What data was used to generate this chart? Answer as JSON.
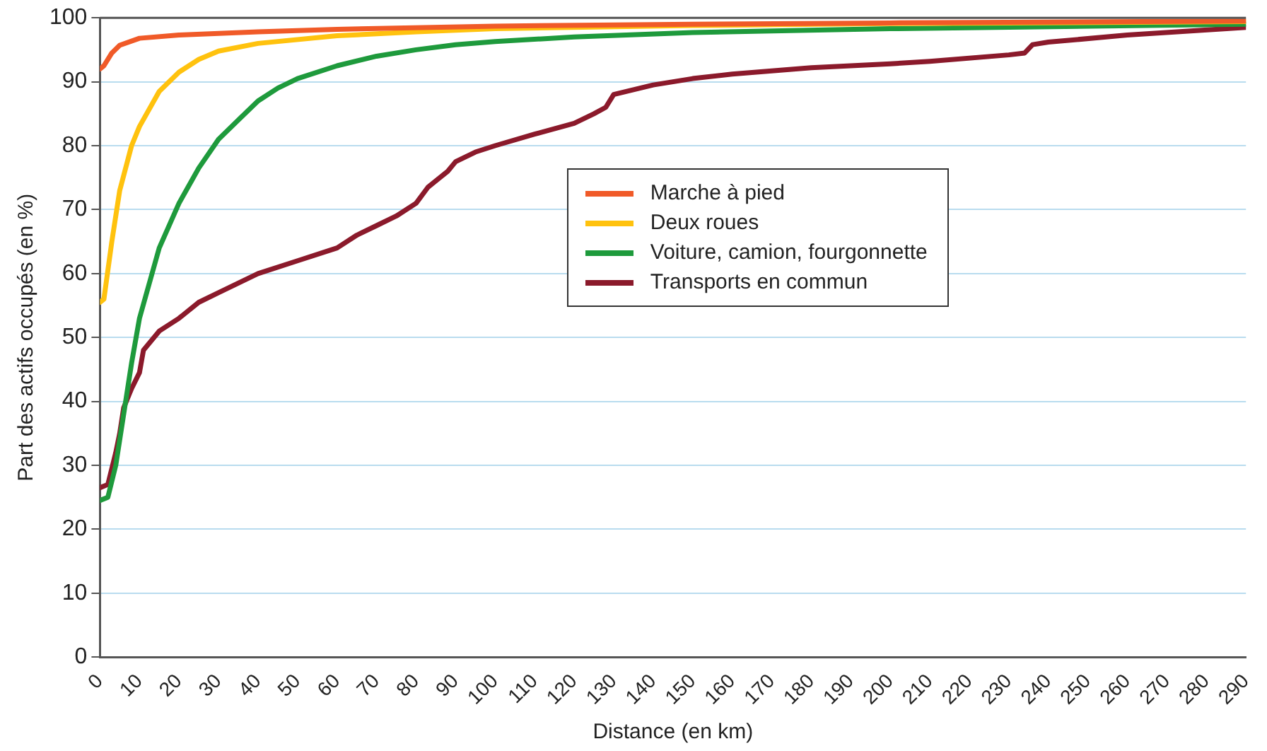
{
  "chart_data": {
    "type": "line",
    "xlabel": "Distance (en km)",
    "ylabel": "Part des actifs occupés (en %)",
    "xlim": [
      0,
      290
    ],
    "xticks": [
      0,
      10,
      20,
      30,
      40,
      50,
      60,
      70,
      80,
      90,
      100,
      110,
      120,
      130,
      140,
      150,
      160,
      170,
      180,
      190,
      200,
      210,
      220,
      230,
      240,
      250,
      260,
      270,
      280,
      290
    ],
    "ylim": [
      0,
      100
    ],
    "yticks": [
      0,
      10,
      20,
      30,
      40,
      50,
      60,
      70,
      80,
      90,
      100
    ],
    "grid": "y",
    "legend": "center",
    "marker": "none",
    "line_style": "solid",
    "series": [
      {
        "name": "Marche à pied",
        "color": "#f05a28",
        "x": [
          0,
          1,
          3,
          5,
          10,
          20,
          40,
          60,
          100,
          150,
          200,
          290
        ],
        "values": [
          92,
          92.5,
          94.5,
          95.7,
          96.8,
          97.3,
          97.8,
          98.2,
          98.7,
          99,
          99.2,
          99.5
        ]
      },
      {
        "name": "Deux roues",
        "color": "#ffc20e",
        "x": [
          0,
          1,
          3,
          5,
          8,
          10,
          15,
          20,
          25,
          30,
          40,
          60,
          80,
          100,
          150,
          200,
          290
        ],
        "values": [
          55.5,
          56,
          65,
          73,
          80,
          83,
          88.5,
          91.5,
          93.5,
          94.8,
          96,
          97.2,
          97.8,
          98.3,
          98.8,
          99.1,
          99.4
        ]
      },
      {
        "name": "Voiture, camion, fourgonnette",
        "color": "#1e9a3c",
        "x": [
          0,
          2,
          4,
          6,
          8,
          10,
          15,
          20,
          25,
          30,
          35,
          40,
          45,
          50,
          60,
          70,
          80,
          90,
          100,
          120,
          150,
          200,
          290
        ],
        "values": [
          24.5,
          25,
          30,
          38,
          46,
          53,
          64,
          71,
          76.5,
          81,
          84,
          87,
          89,
          90.5,
          92.5,
          94,
          95,
          95.8,
          96.3,
          97,
          97.7,
          98.3,
          99
        ]
      },
      {
        "name": "Transports en commun",
        "color": "#8b1a2b",
        "x": [
          0,
          2,
          4,
          5,
          6,
          8,
          10,
          11,
          13,
          15,
          20,
          25,
          30,
          35,
          40,
          50,
          60,
          65,
          70,
          75,
          80,
          83,
          88,
          90,
          95,
          100,
          110,
          120,
          125,
          128,
          130,
          140,
          150,
          160,
          180,
          200,
          210,
          230,
          234,
          236,
          240,
          260,
          290
        ],
        "values": [
          26.5,
          27,
          32,
          35,
          39,
          42,
          44.5,
          48,
          49.5,
          51,
          53,
          55.5,
          57,
          58.5,
          60,
          62,
          64,
          66,
          67.5,
          69,
          71,
          73.5,
          76,
          77.5,
          79,
          80,
          81.8,
          83.5,
          85,
          86,
          88,
          89.5,
          90.5,
          91.2,
          92.2,
          92.8,
          93.2,
          94.2,
          94.5,
          95.8,
          96.2,
          97.3,
          98.5
        ]
      }
    ]
  }
}
